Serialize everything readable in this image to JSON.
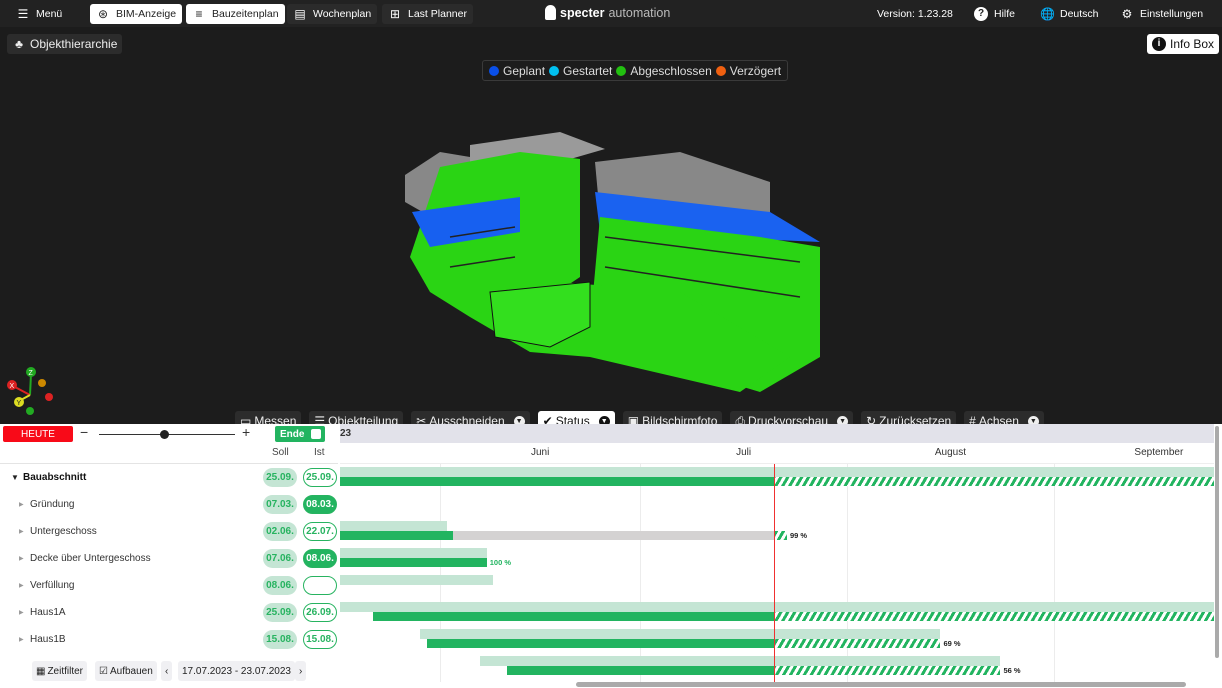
{
  "topbar": {
    "menu": "Menü",
    "tabs": [
      {
        "label": "BIM-Anzeige",
        "icon": "bim-icon",
        "active": true
      },
      {
        "label": "Bauzeitenplan",
        "icon": "gantt-icon",
        "active": true
      },
      {
        "label": "Wochenplan",
        "icon": "list-icon",
        "active": false
      },
      {
        "label": "Last Planner",
        "icon": "grid-icon",
        "active": false
      }
    ],
    "logo_bold": "specter",
    "logo_light": "automation",
    "version": "Version: 1.23.28",
    "help": "Hilfe",
    "language": "Deutsch",
    "settings": "Einstellungen"
  },
  "viewer": {
    "hierarchy": "Objekthierarchie",
    "info_box": "Info Box",
    "legend": [
      {
        "label": "Geplant",
        "color": "#0a4fe8"
      },
      {
        "label": "Gestartet",
        "color": "#00c0f0"
      },
      {
        "label": "Abgeschlossen",
        "color": "#22c010"
      },
      {
        "label": "Verzögert",
        "color": "#f06010"
      }
    ],
    "toolbar": [
      {
        "label": "Messen",
        "icon": "ruler-icon"
      },
      {
        "label": "Objektteilung",
        "icon": "split-icon"
      },
      {
        "label": "Ausschneiden",
        "icon": "scissors-icon",
        "dropdown": true
      },
      {
        "label": "Status",
        "icon": "check-circle-icon",
        "dropdown": true,
        "active": true
      },
      {
        "label": "Bildschirmfoto",
        "icon": "image-icon"
      },
      {
        "label": "Druckvorschau",
        "icon": "print-icon",
        "dropdown": true
      },
      {
        "label": "Zurücksetzen",
        "icon": "reset-icon"
      },
      {
        "label": "Achsen",
        "icon": "hash-icon",
        "dropdown": true
      }
    ],
    "axes": {
      "x": "X",
      "y": "Y",
      "z": "Z"
    }
  },
  "gantt": {
    "today": "HEUTE",
    "zoom_level": 0.48,
    "end_toggle": "Ende",
    "year_fragment": "23",
    "col_soll": "Soll",
    "col_ist": "Ist",
    "months": [
      {
        "label": "Juni",
        "start": "2023-06-01"
      },
      {
        "label": "Juli",
        "start": "2023-07-01"
      },
      {
        "label": "August",
        "start": "2023-08-01"
      },
      {
        "label": "September",
        "start": "2023-09-01"
      }
    ],
    "xlim": [
      "2023-05-17",
      "2023-09-25"
    ],
    "today_date": "2023-07-21",
    "rows": [
      {
        "name": "Bauabschnitt",
        "bold": true,
        "expanded": true,
        "soll": "25.09.",
        "ist": "25.09.",
        "ist_filled": false,
        "plan": [
          "2023-05-01",
          "2023-09-30"
        ],
        "actual": [
          "2023-05-01",
          "2023-09-30"
        ],
        "pct": ""
      },
      {
        "name": "Gründung",
        "soll": "07.03.",
        "ist": "08.03.",
        "ist_filled": true,
        "pct": ""
      },
      {
        "name": "Untergeschoss",
        "soll": "02.06.",
        "ist": "22.07.",
        "ist_filled": false,
        "plan": [
          "2023-05-01",
          "2023-06-02"
        ],
        "actual": [
          "2023-05-01",
          "2023-07-23"
        ],
        "green_until": "2023-06-03",
        "grey": true,
        "pct": "99 %"
      },
      {
        "name": "Decke über Untergeschoss",
        "soll": "07.06.",
        "ist": "08.06.",
        "ist_filled": true,
        "plan": [
          "2023-05-01",
          "2023-06-08"
        ],
        "actual": [
          "2023-05-01",
          "2023-06-08"
        ],
        "pct": "100 %",
        "pct_green": true
      },
      {
        "name": "Verfüllung",
        "soll": "08.06.",
        "ist": "",
        "ist_filled": false,
        "plan": [
          "2023-05-01",
          "2023-06-09"
        ],
        "pct": ""
      },
      {
        "name": "Haus1A",
        "soll": "25.09.",
        "ist": "26.09.",
        "ist_filled": false,
        "plan": [
          "2023-05-01",
          "2023-09-30"
        ],
        "actual": [
          "2023-05-22",
          "2023-09-30"
        ],
        "pct": ""
      },
      {
        "name": "Haus1B",
        "soll": "15.08.",
        "ist": "15.08.",
        "ist_filled": false,
        "plan": [
          "2023-05-29",
          "2023-08-15"
        ],
        "actual": [
          "2023-05-30",
          "2023-08-15"
        ],
        "pct": "69 %"
      },
      {
        "name": "",
        "soll": "",
        "ist": "",
        "plan": [
          "2023-06-07",
          "2023-08-24"
        ],
        "actual": [
          "2023-06-11",
          "2023-08-24"
        ],
        "pct": "56 %"
      }
    ],
    "footer": {
      "time_filter": "Zeitfilter",
      "build": "Aufbauen",
      "date_range": "17.07.2023 - 23.07.2023"
    }
  }
}
